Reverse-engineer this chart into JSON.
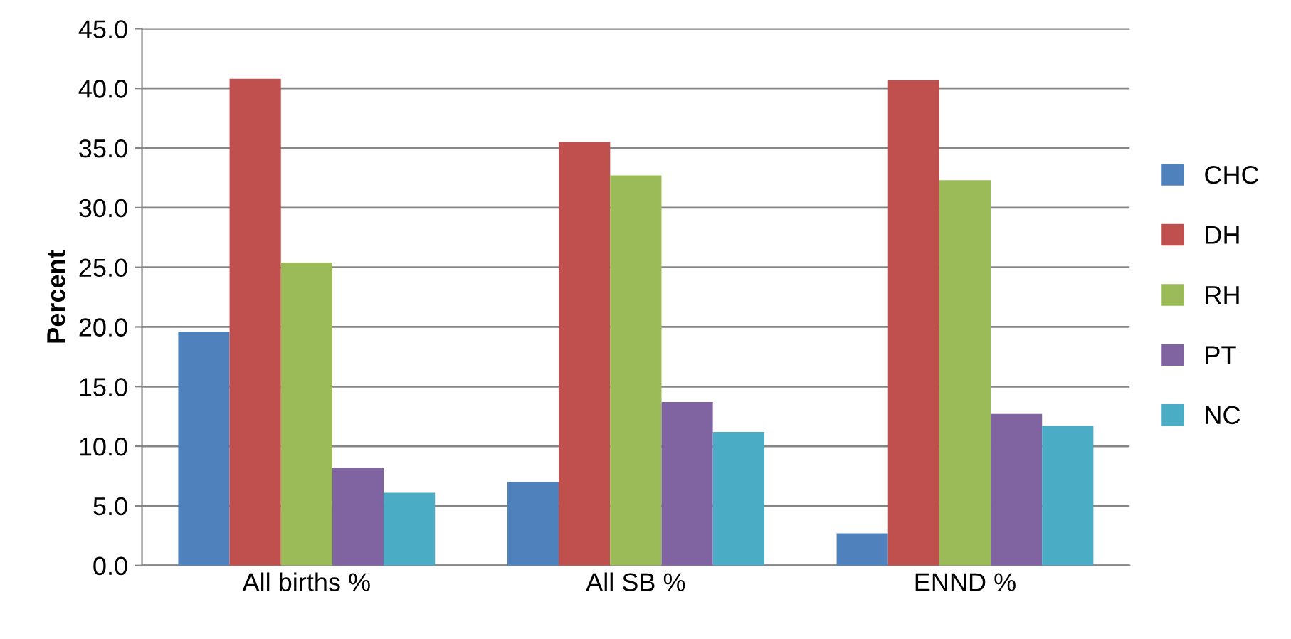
{
  "chart_data": {
    "type": "bar",
    "ylabel": "Percent",
    "categories": [
      "All births %",
      "All SB %",
      "ENND %"
    ],
    "series": [
      {
        "name": "CHC",
        "color": "#4f81bd",
        "values": [
          19.6,
          7.0,
          2.7
        ]
      },
      {
        "name": "DH",
        "color": "#c0504d",
        "values": [
          40.8,
          35.5,
          40.7
        ]
      },
      {
        "name": "RH",
        "color": "#9bbb59",
        "values": [
          25.4,
          32.7,
          32.3
        ]
      },
      {
        "name": "PT",
        "color": "#8064a2",
        "values": [
          8.2,
          13.7,
          12.7
        ]
      },
      {
        "name": "NC",
        "color": "#4bacc6",
        "values": [
          6.1,
          11.2,
          11.7
        ]
      }
    ],
    "ylim": [
      0,
      45
    ],
    "yticks": [
      {
        "value": 0,
        "label": "0.0"
      },
      {
        "value": 5,
        "label": "5.0"
      },
      {
        "value": 10,
        "label": "10.0"
      },
      {
        "value": 15,
        "label": "15.0"
      },
      {
        "value": 20,
        "label": "20.0"
      },
      {
        "value": 25,
        "label": "25.0"
      },
      {
        "value": 30,
        "label": "30.0"
      },
      {
        "value": 35,
        "label": "35.0"
      },
      {
        "value": 40,
        "label": "40.0"
      },
      {
        "value": 45,
        "label": "45.0"
      }
    ],
    "grid": "y",
    "legend": "right"
  }
}
